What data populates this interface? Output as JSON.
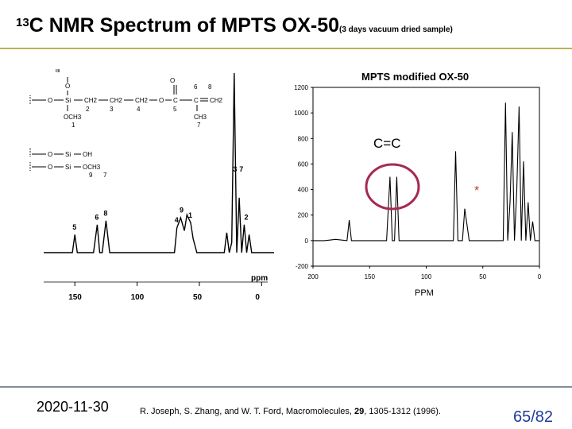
{
  "slide": {
    "title_sup": "13",
    "title_main": "C NMR Spectrum of MPTS OX-50",
    "title_note": "(3 days vacuum dried sample)",
    "date": "2020-11-30",
    "citation_prefix": "R. Joseph, S. Zhang, and W. T. Ford, Macromolecules, ",
    "citation_volume": "29",
    "citation_suffix": ", 1305-1312 (1996).",
    "page": "65/82"
  },
  "chart_data": [
    {
      "type": "line",
      "title": "",
      "xlabel": "ppm",
      "ylabel": "",
      "xlim": [
        175,
        -10
      ],
      "x_ticks": [
        "150",
        "100",
        "50",
        "0"
      ],
      "x": [
        175,
        167,
        160,
        152,
        150,
        148,
        140,
        135,
        132,
        130,
        128,
        125,
        122,
        120,
        100,
        80,
        70,
        68,
        65,
        62,
        60,
        57,
        55,
        52,
        50,
        48,
        40,
        30,
        28,
        26,
        24,
        22,
        20,
        18,
        16,
        14,
        12,
        10,
        8,
        5,
        2,
        0,
        -5,
        -10
      ],
      "y": [
        0,
        0,
        0,
        0,
        18,
        0,
        0,
        0,
        28,
        0,
        0,
        32,
        0,
        0,
        0,
        0,
        0,
        25,
        35,
        22,
        38,
        30,
        14,
        0,
        0,
        0,
        0,
        0,
        20,
        0,
        10,
        180,
        0,
        55,
        0,
        28,
        0,
        18,
        0,
        0,
        0,
        0,
        0,
        0
      ],
      "peak_labels": [
        {
          "label": "5",
          "x": 150,
          "y": 20
        },
        {
          "label": "6",
          "x": 132,
          "y": 30
        },
        {
          "label": "8",
          "x": 125,
          "y": 34
        },
        {
          "label": "4",
          "x": 68,
          "y": 27
        },
        {
          "label": "9",
          "x": 64,
          "y": 37
        },
        {
          "label": "1",
          "x": 57,
          "y": 32
        },
        {
          "label": "3",
          "x": 21,
          "y": 78
        },
        {
          "label": "7",
          "x": 16,
          "y": 78
        },
        {
          "label": "2",
          "x": 12,
          "y": 30
        }
      ],
      "structure_labels": {
        "tmp": "ᴵᴵᴵᴵ",
        "r1_o1": "O",
        "r1_si": "Si",
        "r1_ch2a": "CH2",
        "r1_ch2b": "CH2",
        "r1_ch2c": "CH2",
        "r1_o2": "O",
        "r1_c": "C",
        "r1_c2": "C",
        "r1_ch2d": "CH2",
        "n6": "6",
        "n8": "8",
        "o_top": "O",
        "n2": "2",
        "n3": "3",
        "n4": "4",
        "n5": "5",
        "r1_och3": "OCH3",
        "n1": "1",
        "r1_ch3": "CH3",
        "n7": "7",
        "r2_o1": "O",
        "r2_si": "Si",
        "r2_oh": "OH",
        "r3_o": "O",
        "r3_si": "Si",
        "r3_och3": "OCH3",
        "n9": "9",
        "n7b": "7"
      }
    },
    {
      "type": "line",
      "title": "MPTS modified OX-50",
      "xlabel": "PPM",
      "ylabel": "",
      "xlim": [
        200,
        0
      ],
      "ylim": [
        -200,
        1200
      ],
      "y_ticks": [
        1200,
        1000,
        800,
        600,
        400,
        200,
        0,
        -200
      ],
      "x_ticks": [
        200,
        150,
        100,
        50,
        0
      ],
      "x": [
        200,
        190,
        180,
        170,
        168,
        166,
        162,
        150,
        140,
        135,
        132,
        130,
        128,
        126,
        124,
        122,
        120,
        110,
        100,
        95,
        92,
        90,
        87,
        84,
        80,
        76,
        74,
        72,
        68,
        66,
        62,
        60,
        56,
        54,
        50,
        45,
        40,
        38,
        36,
        34,
        32,
        30,
        28,
        26,
        24,
        22,
        20,
        18,
        16,
        14,
        12,
        10,
        8,
        6,
        4,
        2,
        0
      ],
      "y": [
        0,
        0,
        10,
        0,
        160,
        0,
        0,
        0,
        0,
        0,
        500,
        0,
        0,
        500,
        0,
        0,
        0,
        0,
        0,
        0,
        0,
        0,
        0,
        0,
        0,
        0,
        700,
        0,
        0,
        250,
        0,
        0,
        0,
        0,
        0,
        0,
        0,
        0,
        0,
        0,
        0,
        1080,
        0,
        300,
        850,
        0,
        400,
        1050,
        0,
        620,
        0,
        300,
        0,
        150,
        0,
        0,
        0
      ],
      "annotations": [
        {
          "text": "C=C"
        },
        {
          "text": "*"
        }
      ]
    }
  ],
  "colors": {
    "title_rule": "#b7b35a",
    "bottom_rule": "#7f8c9e",
    "page_num": "#1f3b9a",
    "circle": "#a42a55",
    "star": "#c0392b"
  }
}
